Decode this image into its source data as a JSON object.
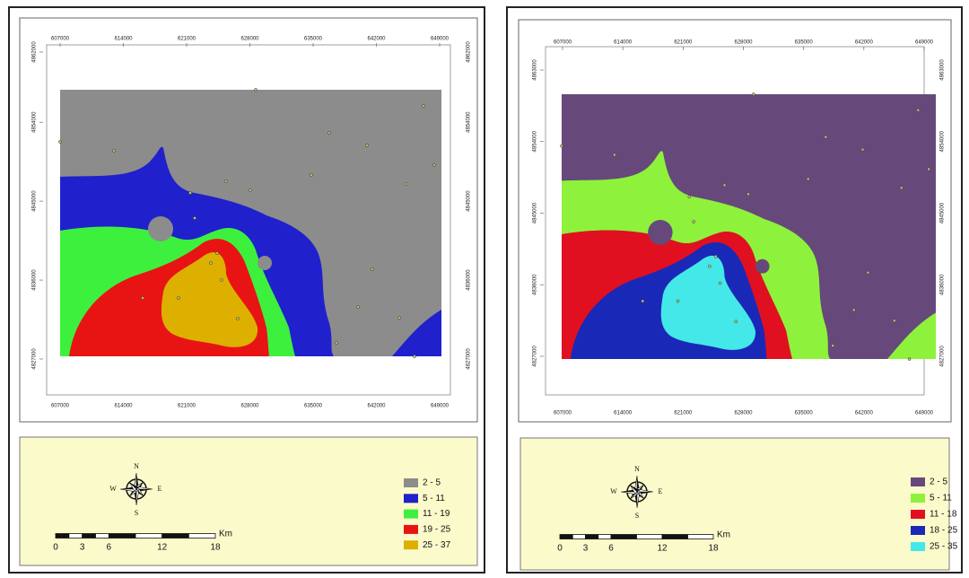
{
  "panels": [
    {
      "x_ticks": [
        607000,
        614000,
        621000,
        628000,
        635000,
        642000,
        649000
      ],
      "y_ticks": [
        4862000,
        4854000,
        4845000,
        4836000,
        4827000
      ],
      "legend": [
        {
          "label": "2 - 5",
          "color": "#8c8c8c"
        },
        {
          "label": "5 - 11",
          "color": "#2020cc"
        },
        {
          "label": "11 - 19",
          "color": "#3ef03e"
        },
        {
          "label": "19 - 25",
          "color": "#e81414"
        },
        {
          "label": "25 - 37",
          "color": "#ddb000"
        }
      ],
      "scale_labels": [
        0,
        3,
        6,
        12,
        18
      ],
      "scale_unit": "Km",
      "compass": {
        "n": "N",
        "s": "S",
        "e": "E",
        "w": "W"
      }
    },
    {
      "x_ticks": [
        607000,
        614000,
        621000,
        628000,
        635000,
        642000,
        649000
      ],
      "y_ticks": [
        4863000,
        4854000,
        4845000,
        4836000,
        4827000
      ],
      "legend": [
        {
          "label": "2 - 5",
          "color": "#66497a"
        },
        {
          "label": "5 - 11",
          "color": "#8ef23c"
        },
        {
          "label": "11 - 18",
          "color": "#e01020"
        },
        {
          "label": "18 - 25",
          "color": "#1a28b8"
        },
        {
          "label": "25 - 35",
          "color": "#44e8e8"
        }
      ],
      "scale_labels": [
        0,
        3,
        6,
        12,
        18
      ],
      "scale_unit": "Km",
      "compass": {
        "n": "N",
        "s": "S",
        "e": "E",
        "w": "W"
      }
    }
  ]
}
